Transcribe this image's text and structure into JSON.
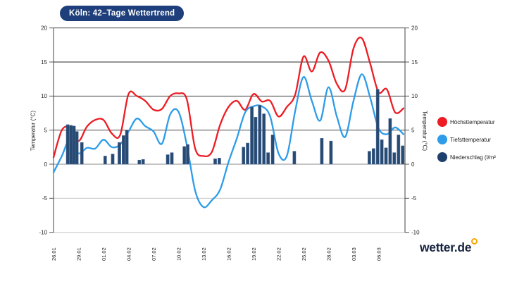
{
  "title": "Köln: 42–Tage Wettertrend",
  "branding": {
    "text": "wetter.de"
  },
  "axes": {
    "left_label": "Temperatur (°C)",
    "right_label": "Temperatur (°C)"
  },
  "legend": [
    {
      "label": "Höchsttemperatur",
      "color": "#ed1c24"
    },
    {
      "label": "Tiefsttemperatur",
      "color": "#2d9ce9"
    },
    {
      "label": "Niederschlag (l/m²",
      "color": "#1f3f6e"
    }
  ],
  "chart_data": {
    "type": "line+bar",
    "title": "Köln: 42–Tage Wettertrend",
    "start_date": "26.01",
    "end_date": "09.03",
    "days_total": 43,
    "x_tick_interval_days": 3,
    "x_tick_labels": [
      "26.01",
      "29.01",
      "01.02",
      "04.02",
      "07.02",
      "10.02",
      "13.02",
      "16.02",
      "19.02",
      "22.02",
      "25.02",
      "28.02",
      "03.03",
      "06.03"
    ],
    "ylim": [
      -10,
      20
    ],
    "y_ticks": [
      20,
      15,
      10,
      5,
      0,
      -5,
      -10
    ],
    "grid": true,
    "legend_position": "right",
    "series": [
      {
        "name": "Höchsttemperatur",
        "type": "line",
        "unit": "°C",
        "color": "#ed1c24",
        "values": [
          1.0,
          5.0,
          5.3,
          3.4,
          5.5,
          6.5,
          6.5,
          4.5,
          4.3,
          10.3,
          10.0,
          9.3,
          8.0,
          8.1,
          10.0,
          10.4,
          9.5,
          2.3,
          1.2,
          1.8,
          5.8,
          8.4,
          9.3,
          8.0,
          10.3,
          9.2,
          9.3,
          7.0,
          8.4,
          10.2,
          15.8,
          13.6,
          16.4,
          15.2,
          11.8,
          11.0,
          17.0,
          18.5,
          14.8,
          10.6,
          11.0,
          7.6,
          8.2
        ]
      },
      {
        "name": "Tiefsttemperatur",
        "type": "line",
        "unit": "°C",
        "color": "#2d9ce9",
        "values": [
          -1.2,
          1.2,
          3.8,
          1.6,
          2.4,
          2.3,
          3.6,
          2.5,
          2.9,
          4.8,
          6.7,
          5.6,
          4.8,
          3.0,
          7.3,
          7.7,
          2.8,
          -3.9,
          -6.3,
          -5.3,
          -3.7,
          0.3,
          3.8,
          7.6,
          8.5,
          8.5,
          7.0,
          1.6,
          1.2,
          7.8,
          12.8,
          9.3,
          6.4,
          11.3,
          7.0,
          4.0,
          9.3,
          13.2,
          9.8,
          5.3,
          4.4,
          5.4,
          4.4
        ]
      },
      {
        "name": "Niederschlag",
        "type": "bar",
        "unit": "l/m²",
        "color": "#274a73",
        "points": [
          {
            "day": 1.7,
            "value": 5.8
          },
          {
            "day": 2.1,
            "value": 5.7
          },
          {
            "day": 2.45,
            "value": 5.6
          },
          {
            "day": 2.8,
            "value": 4.8
          },
          {
            "day": 3.4,
            "value": 3.2
          },
          {
            "day": 6.2,
            "value": 1.2
          },
          {
            "day": 7.1,
            "value": 1.5
          },
          {
            "day": 7.9,
            "value": 3.2
          },
          {
            "day": 8.4,
            "value": 4.2
          },
          {
            "day": 8.8,
            "value": 5.0
          },
          {
            "day": 10.3,
            "value": 0.6
          },
          {
            "day": 10.75,
            "value": 0.7
          },
          {
            "day": 13.7,
            "value": 1.4
          },
          {
            "day": 14.2,
            "value": 1.7
          },
          {
            "day": 15.7,
            "value": 2.6
          },
          {
            "day": 16.1,
            "value": 2.9
          },
          {
            "day": 19.4,
            "value": 0.8
          },
          {
            "day": 19.9,
            "value": 0.9
          },
          {
            "day": 22.8,
            "value": 2.5
          },
          {
            "day": 23.3,
            "value": 3.1
          },
          {
            "day": 23.8,
            "value": 8.4
          },
          {
            "day": 24.25,
            "value": 6.9
          },
          {
            "day": 24.75,
            "value": 8.65
          },
          {
            "day": 25.25,
            "value": 7.4
          },
          {
            "day": 25.75,
            "value": 1.7
          },
          {
            "day": 26.3,
            "value": 4.3
          },
          {
            "day": 28.9,
            "value": 1.9
          },
          {
            "day": 32.2,
            "value": 3.8
          },
          {
            "day": 33.3,
            "value": 3.4
          },
          {
            "day": 37.9,
            "value": 1.9
          },
          {
            "day": 38.4,
            "value": 2.3
          },
          {
            "day": 38.9,
            "value": 11.0
          },
          {
            "day": 39.4,
            "value": 3.6
          },
          {
            "day": 39.9,
            "value": 2.4
          },
          {
            "day": 40.4,
            "value": 6.7
          },
          {
            "day": 40.9,
            "value": 1.7
          },
          {
            "day": 41.4,
            "value": 4.3
          },
          {
            "day": 41.9,
            "value": 2.7
          }
        ]
      }
    ]
  }
}
